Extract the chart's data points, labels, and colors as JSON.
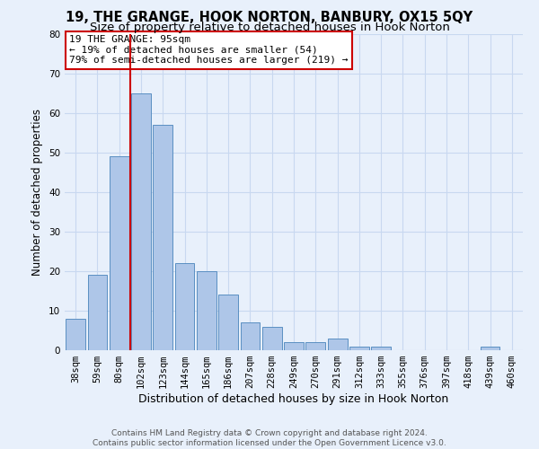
{
  "title": "19, THE GRANGE, HOOK NORTON, BANBURY, OX15 5QY",
  "subtitle": "Size of property relative to detached houses in Hook Norton",
  "xlabel": "Distribution of detached houses by size in Hook Norton",
  "ylabel": "Number of detached properties",
  "categories": [
    "38sqm",
    "59sqm",
    "80sqm",
    "102sqm",
    "123sqm",
    "144sqm",
    "165sqm",
    "186sqm",
    "207sqm",
    "228sqm",
    "249sqm",
    "270sqm",
    "291sqm",
    "312sqm",
    "333sqm",
    "355sqm",
    "376sqm",
    "397sqm",
    "418sqm",
    "439sqm",
    "460sqm"
  ],
  "values": [
    8,
    19,
    49,
    65,
    57,
    22,
    20,
    14,
    7,
    6,
    2,
    2,
    3,
    1,
    1,
    0,
    0,
    0,
    0,
    1,
    0
  ],
  "bar_color": "#aec6e8",
  "bar_edge_color": "#5a8fc2",
  "grid_color": "#c8d8f0",
  "background_color": "#e8f0fb",
  "vline_color": "#cc0000",
  "annotation_text": "19 THE GRANGE: 95sqm\n← 19% of detached houses are smaller (54)\n79% of semi-detached houses are larger (219) →",
  "annotation_box_color": "#ffffff",
  "annotation_box_edge_color": "#cc0000",
  "ylim": [
    0,
    80
  ],
  "yticks": [
    0,
    10,
    20,
    30,
    40,
    50,
    60,
    70,
    80
  ],
  "footer": "Contains HM Land Registry data © Crown copyright and database right 2024.\nContains public sector information licensed under the Open Government Licence v3.0.",
  "title_fontsize": 10.5,
  "subtitle_fontsize": 9.5,
  "xlabel_fontsize": 9,
  "ylabel_fontsize": 8.5,
  "tick_fontsize": 7.5,
  "annotation_fontsize": 8,
  "footer_fontsize": 6.5
}
